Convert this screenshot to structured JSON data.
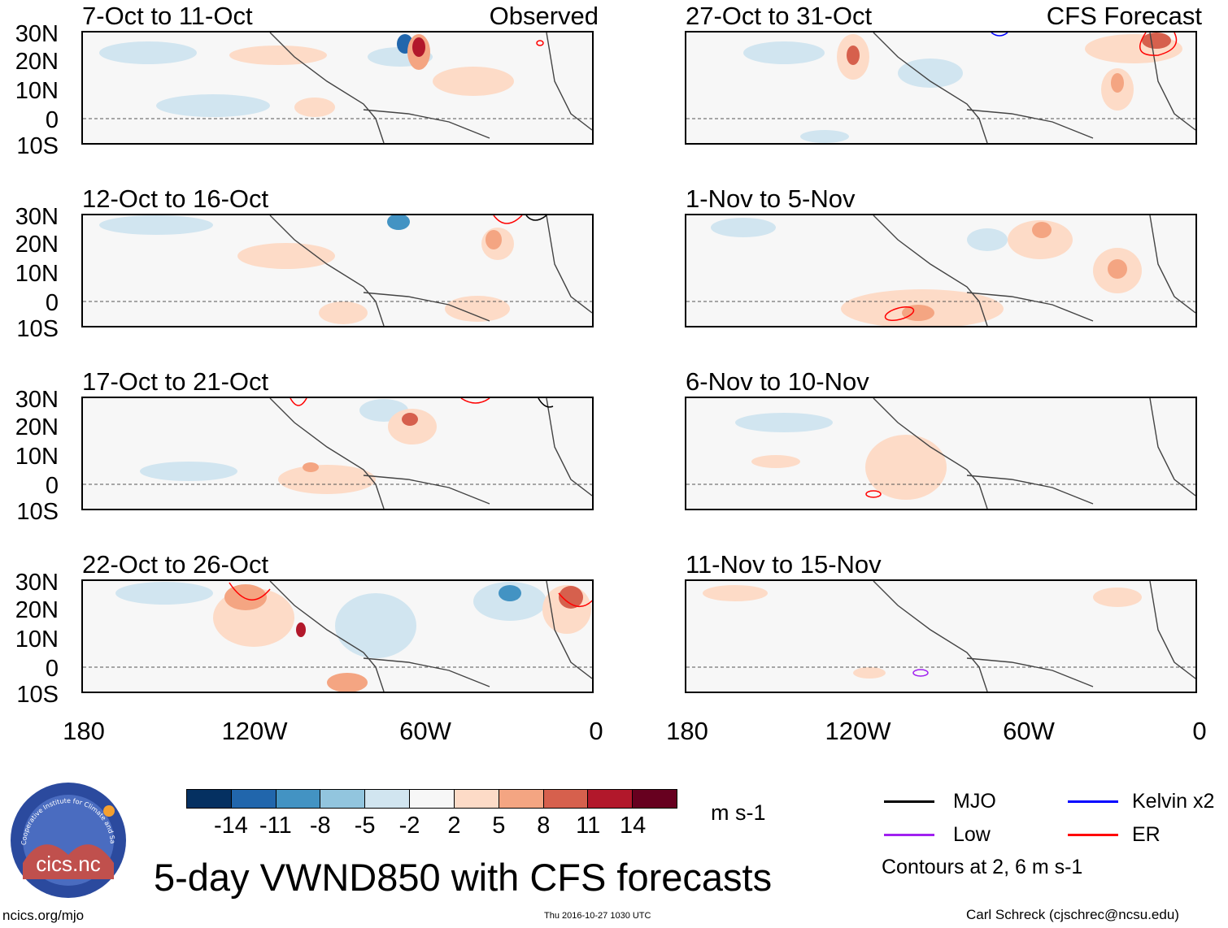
{
  "panels": [
    {
      "title": "7-Oct to 11-Oct",
      "tag": "Observed"
    },
    {
      "title": "12-Oct to 16-Oct",
      "tag": ""
    },
    {
      "title": "17-Oct to 21-Oct",
      "tag": ""
    },
    {
      "title": "22-Oct to 26-Oct",
      "tag": ""
    },
    {
      "title": "27-Oct to 31-Oct",
      "tag": "CFS Forecast"
    },
    {
      "title": "1-Nov to 5-Nov",
      "tag": ""
    },
    {
      "title": "6-Nov to 10-Nov",
      "tag": ""
    },
    {
      "title": "11-Nov to 15-Nov",
      "tag": ""
    }
  ],
  "lat_labels": [
    "30N",
    "20N",
    "10N",
    "0",
    "10S"
  ],
  "lon_labels": [
    "180",
    "120W",
    "60W",
    "0"
  ],
  "colorbar": {
    "ticks": [
      "-14",
      "-11",
      "-8",
      "-5",
      "-2",
      "2",
      "5",
      "8",
      "11",
      "14"
    ],
    "colors": [
      "#053061",
      "#2166ac",
      "#4393c3",
      "#92c5de",
      "#d1e5f0",
      "#f7f7f7",
      "#fddbc7",
      "#f4a582",
      "#d6604d",
      "#b2182b",
      "#67001f"
    ],
    "units": "m s-1"
  },
  "main_title": "5-day VWND850 with CFS forecasts",
  "legend": {
    "items": [
      {
        "label": "MJO",
        "color": "#000000"
      },
      {
        "label": "Kelvin x2",
        "color": "#0000ff"
      },
      {
        "label": "Low",
        "color": "#a020f0"
      },
      {
        "label": "ER",
        "color": "#ff0000"
      }
    ],
    "note": "Contours at 2, 6 m s-1"
  },
  "footer": {
    "site": "ncics.org/mjo",
    "timestamp": "Thu 2016-10-27 1030 UTC",
    "author": "Carl Schreck (cjschrec@ncsu.edu)"
  },
  "logo": {
    "name": "cics.nc",
    "ring_text": "Cooperative Institute for Climate and Satellites"
  }
}
